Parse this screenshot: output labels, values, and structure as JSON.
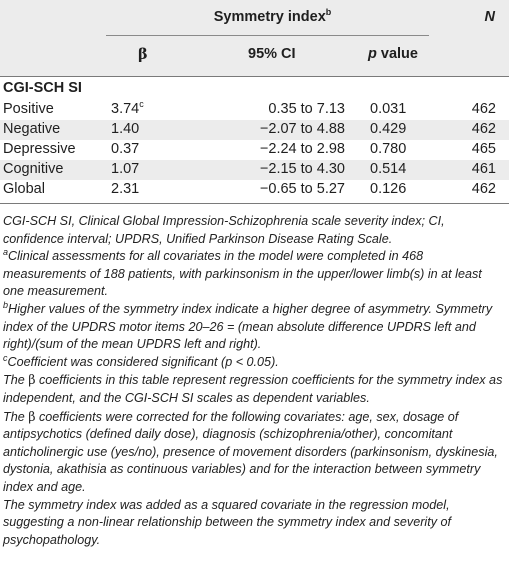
{
  "table": {
    "group_header": "Symmetry index",
    "group_header_sup": "b",
    "n_header": "N",
    "col_beta": "β",
    "col_ci": "95% CI",
    "col_p_italic": "p",
    "col_p_rest": " value",
    "section_title": "CGI-SCH SI",
    "rows": [
      {
        "label": "Positive",
        "beta": "3.74",
        "beta_sup": "c",
        "ci": "0.35 to 7.13",
        "p": "0.031",
        "n": "462"
      },
      {
        "label": "Negative",
        "beta": "1.40",
        "beta_sup": "",
        "ci": "−2.07 to 4.88",
        "p": "0.429",
        "n": "462"
      },
      {
        "label": "Depressive",
        "beta": "0.37",
        "beta_sup": "",
        "ci": "−2.24 to 2.98",
        "p": "0.780",
        "n": "465"
      },
      {
        "label": "Cognitive",
        "beta": "1.07",
        "beta_sup": "",
        "ci": "−2.15 to 4.30",
        "p": "0.514",
        "n": "461"
      },
      {
        "label": "Global",
        "beta": "2.31",
        "beta_sup": "",
        "ci": "−0.65 to 5.27",
        "p": "0.126",
        "n": "462"
      }
    ]
  },
  "notes": {
    "abbrev": "CGI-SCH SI, Clinical Global Impression-Schizophrenia scale severity index; CI, confidence interval; UPDRS, Unified Parkinson Disease Rating Scale.",
    "a_sup": "a",
    "a_text": "Clinical assessments for all covariates in the model were completed in 468 measurements of 188 patients, with parkinsonism in the upper/lower limb(s) in at least one measurement.",
    "b_sup": "b",
    "b_text": "Higher values of the symmetry index indicate a higher degree of asymmetry. Symmetry index of the UPDRS motor items 20–26 = (mean absolute difference UPDRS left and right)/(sum of the mean UPDRS left and right).",
    "c_sup": "c",
    "c_text": "Coefficient was considered significant (p < 0.05).",
    "beta_glyph": "β",
    "line1_pre": "The ",
    "line1_post": " coefficients in this table represent regression coefficients for the symmetry index as independent, and the CGI-SCH SI scales as dependent variables.",
    "line2_pre": "The ",
    "line2_post": " coefficients were corrected for the following covariates: age, sex, dosage of antipsychotics (defined daily dose), diagnosis (schizophrenia/other), concomitant anticholinergic use (yes/no), presence of movement disorders (parkinsonism, dyskinesia, dystonia, akathisia as continuous variables) and for the interaction between symmetry index and age.",
    "line3": "The symmetry index was added as a squared covariate in the regression model, suggesting a non-linear relationship between the symmetry index and severity of psychopathology."
  }
}
